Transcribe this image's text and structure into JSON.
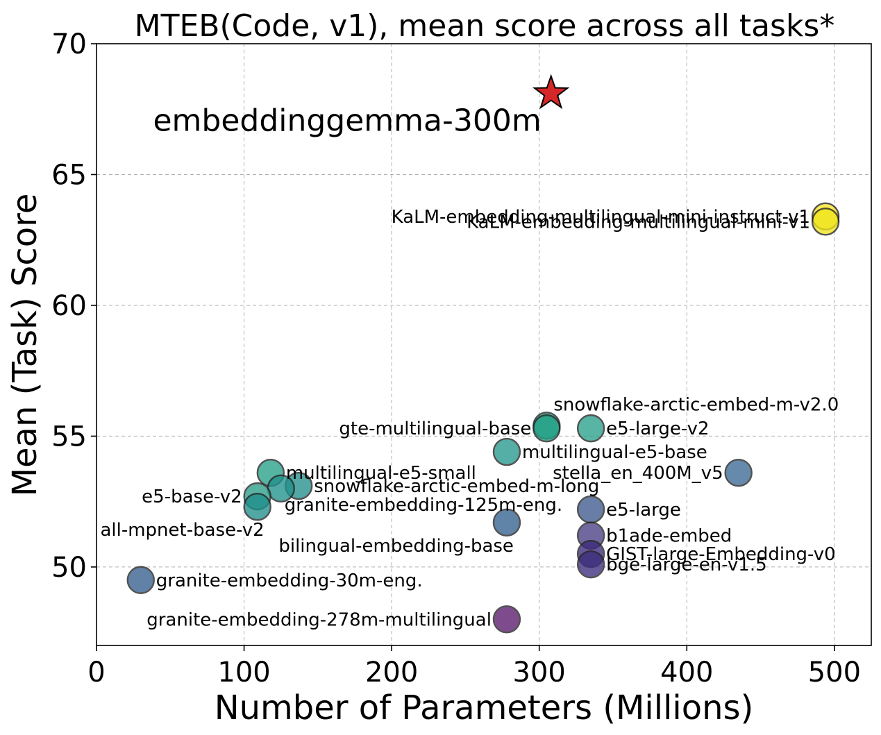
{
  "chart_data": {
    "type": "scatter",
    "title": "MTEB(Code, v1), mean score across all tasks*",
    "xlabel": "Number of Parameters (Millions)",
    "ylabel": "Mean (Task) Score",
    "xlim": [
      0,
      525
    ],
    "ylim": [
      47,
      70
    ],
    "xticks": [
      0,
      100,
      200,
      300,
      400,
      500
    ],
    "yticks": [
      50,
      55,
      60,
      65,
      70
    ],
    "xtick_labels": [
      "0",
      "100",
      "200",
      "300",
      "400",
      "500"
    ],
    "ytick_labels": [
      "50",
      "55",
      "60",
      "65",
      "70"
    ],
    "grid": true,
    "highlight": {
      "name": "embeddinggemma-300m",
      "x": 308,
      "y": 68.1,
      "marker": "star",
      "color": "#d62728"
    },
    "points": [
      {
        "name": "KaLM-embedding-multilingual-mini-instruct-v1",
        "x": 494,
        "y": 63.4,
        "color": "#fde725",
        "label_side": "left"
      },
      {
        "name": "KaLM-embedding-multilingual-mini-v1",
        "x": 494,
        "y": 63.2,
        "color": "#f0e51c",
        "label_side": "left"
      },
      {
        "name": "snowflake-arctic-embed-m-v2.0",
        "x": 305,
        "y": 55.4,
        "color": "#1fa187",
        "label_side": "above"
      },
      {
        "name": "gte-multilingual-base",
        "x": 305,
        "y": 55.3,
        "color": "#22a085",
        "label_side": "left"
      },
      {
        "name": "e5-large-v2",
        "x": 335,
        "y": 55.3,
        "color": "#2aa08a",
        "label_side": "right"
      },
      {
        "name": "multilingual-e5-base",
        "x": 278,
        "y": 54.4,
        "color": "#26998e",
        "label_side": "right"
      },
      {
        "name": "stella_en_400M_v5",
        "x": 435,
        "y": 53.6,
        "color": "#3b6a96",
        "label_side": "left"
      },
      {
        "name": "multilingual-e5-small",
        "x": 118,
        "y": 53.6,
        "color": "#27a08a",
        "label_side": "right"
      },
      {
        "name": "snowflake-arctic-embed-m-long",
        "x": 137,
        "y": 53.1,
        "color": "#238f8b",
        "label_side": "right"
      },
      {
        "name": "granite-embedding-125m-eng.",
        "x": 125,
        "y": 53.0,
        "color": "#21918c",
        "label_side": "below"
      },
      {
        "name": "e5-base-v2",
        "x": 109,
        "y": 52.7,
        "color": "#2a9e8a",
        "label_side": "left"
      },
      {
        "name": "all-mpnet-base-v2",
        "x": 109,
        "y": 52.3,
        "color": "#1f8f8b",
        "label_side": "below-left"
      },
      {
        "name": "e5-large",
        "x": 335,
        "y": 52.2,
        "color": "#3e5a8f",
        "label_side": "right"
      },
      {
        "name": "bilingual-embedding-base",
        "x": 278,
        "y": 51.7,
        "color": "#34628f",
        "label_side": "below-left"
      },
      {
        "name": "b1ade-embed",
        "x": 335,
        "y": 51.2,
        "color": "#483e85",
        "label_side": "right"
      },
      {
        "name": "GIST-large-Embedding-v0",
        "x": 335,
        "y": 50.5,
        "color": "#3c2a7c",
        "label_side": "right"
      },
      {
        "name": "bge-large-en-v1.5",
        "x": 335,
        "y": 50.1,
        "color": "#3d2d7d",
        "label_side": "right"
      },
      {
        "name": "granite-embedding-30m-eng.",
        "x": 30,
        "y": 49.5,
        "color": "#36608e",
        "label_side": "right"
      },
      {
        "name": "granite-embedding-278m-multilingual",
        "x": 278,
        "y": 48.0,
        "color": "#5a1b6e",
        "label_side": "left"
      }
    ]
  }
}
